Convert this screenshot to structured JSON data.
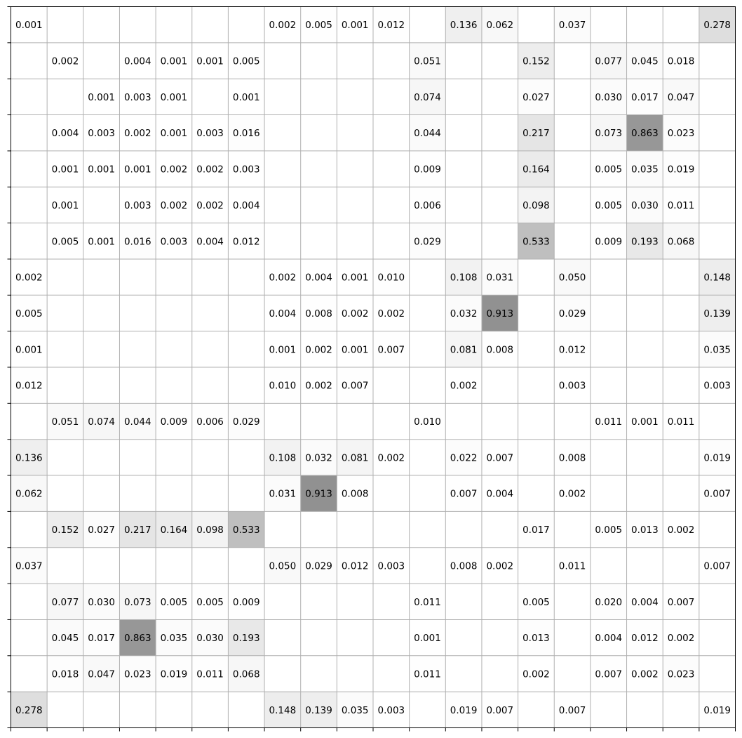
{
  "chart_data": {
    "type": "heatmap",
    "title": "",
    "xlabel": "",
    "ylabel": "",
    "n_rows": 20,
    "n_cols": 20,
    "grid": true,
    "colormap": "greys",
    "value_range": [
      0,
      1
    ],
    "matrix": [
      [
        "0.001",
        "",
        "",
        "",
        "",
        "",
        "",
        "0.002",
        "0.005",
        "0.001",
        "0.012",
        "",
        "0.136",
        "0.062",
        "",
        "0.037",
        "",
        "",
        "",
        "0.278"
      ],
      [
        "",
        "0.002",
        "",
        "0.004",
        "0.001",
        "0.001",
        "0.005",
        "",
        "",
        "",
        "",
        "0.051",
        "",
        "",
        "0.152",
        "",
        "0.077",
        "0.045",
        "0.018",
        ""
      ],
      [
        "",
        "",
        "0.001",
        "0.003",
        "0.001",
        "",
        "0.001",
        "",
        "",
        "",
        "",
        "0.074",
        "",
        "",
        "0.027",
        "",
        "0.030",
        "0.017",
        "0.047",
        ""
      ],
      [
        "",
        "0.004",
        "0.003",
        "0.002",
        "0.001",
        "0.003",
        "0.016",
        "",
        "",
        "",
        "",
        "0.044",
        "",
        "",
        "0.217",
        "",
        "0.073",
        "0.863",
        "0.023",
        ""
      ],
      [
        "",
        "0.001",
        "0.001",
        "0.001",
        "0.002",
        "0.002",
        "0.003",
        "",
        "",
        "",
        "",
        "0.009",
        "",
        "",
        "0.164",
        "",
        "0.005",
        "0.035",
        "0.019",
        ""
      ],
      [
        "",
        "0.001",
        "",
        "0.003",
        "0.002",
        "0.002",
        "0.004",
        "",
        "",
        "",
        "",
        "0.006",
        "",
        "",
        "0.098",
        "",
        "0.005",
        "0.030",
        "0.011",
        ""
      ],
      [
        "",
        "0.005",
        "0.001",
        "0.016",
        "0.003",
        "0.004",
        "0.012",
        "",
        "",
        "",
        "",
        "0.029",
        "",
        "",
        "0.533",
        "",
        "0.009",
        "0.193",
        "0.068",
        ""
      ],
      [
        "0.002",
        "",
        "",
        "",
        "",
        "",
        "",
        "0.002",
        "0.004",
        "0.001",
        "0.010",
        "",
        "0.108",
        "0.031",
        "",
        "0.050",
        "",
        "",
        "",
        "0.148"
      ],
      [
        "0.005",
        "",
        "",
        "",
        "",
        "",
        "",
        "0.004",
        "0.008",
        "0.002",
        "0.002",
        "",
        "0.032",
        "0.913",
        "",
        "0.029",
        "",
        "",
        "",
        "0.139"
      ],
      [
        "0.001",
        "",
        "",
        "",
        "",
        "",
        "",
        "0.001",
        "0.002",
        "0.001",
        "0.007",
        "",
        "0.081",
        "0.008",
        "",
        "0.012",
        "",
        "",
        "",
        "0.035"
      ],
      [
        "0.012",
        "",
        "",
        "",
        "",
        "",
        "",
        "0.010",
        "0.002",
        "0.007",
        "",
        "",
        "0.002",
        "",
        "",
        "0.003",
        "",
        "",
        "",
        "0.003"
      ],
      [
        "",
        "0.051",
        "0.074",
        "0.044",
        "0.009",
        "0.006",
        "0.029",
        "",
        "",
        "",
        "",
        "0.010",
        "",
        "",
        "",
        "",
        "0.011",
        "0.001",
        "0.011",
        ""
      ],
      [
        "0.136",
        "",
        "",
        "",
        "",
        "",
        "",
        "0.108",
        "0.032",
        "0.081",
        "0.002",
        "",
        "0.022",
        "0.007",
        "",
        "0.008",
        "",
        "",
        "",
        "0.019"
      ],
      [
        "0.062",
        "",
        "",
        "",
        "",
        "",
        "",
        "0.031",
        "0.913",
        "0.008",
        "",
        "",
        "0.007",
        "0.004",
        "",
        "0.002",
        "",
        "",
        "",
        "0.007"
      ],
      [
        "",
        "0.152",
        "0.027",
        "0.217",
        "0.164",
        "0.098",
        "0.533",
        "",
        "",
        "",
        "",
        "",
        "",
        "",
        "0.017",
        "",
        "0.005",
        "0.013",
        "0.002",
        ""
      ],
      [
        "0.037",
        "",
        "",
        "",
        "",
        "",
        "",
        "0.050",
        "0.029",
        "0.012",
        "0.003",
        "",
        "0.008",
        "0.002",
        "",
        "0.011",
        "",
        "",
        "",
        "0.007"
      ],
      [
        "",
        "0.077",
        "0.030",
        "0.073",
        "0.005",
        "0.005",
        "0.009",
        "",
        "",
        "",
        "",
        "0.011",
        "",
        "",
        "0.005",
        "",
        "0.020",
        "0.004",
        "0.007",
        ""
      ],
      [
        "",
        "0.045",
        "0.017",
        "0.863",
        "0.035",
        "0.030",
        "0.193",
        "",
        "",
        "",
        "",
        "0.001",
        "",
        "",
        "0.013",
        "",
        "0.004",
        "0.012",
        "0.002",
        ""
      ],
      [
        "",
        "0.018",
        "0.047",
        "0.023",
        "0.019",
        "0.011",
        "0.068",
        "",
        "",
        "",
        "",
        "0.011",
        "",
        "",
        "0.002",
        "",
        "0.007",
        "0.002",
        "0.023",
        ""
      ],
      [
        "0.278",
        "",
        "",
        "",
        "",
        "",
        "",
        "0.148",
        "0.139",
        "0.035",
        "0.003",
        "",
        "0.019",
        "0.007",
        "",
        "0.007",
        "",
        "",
        "",
        "0.019"
      ]
    ]
  }
}
